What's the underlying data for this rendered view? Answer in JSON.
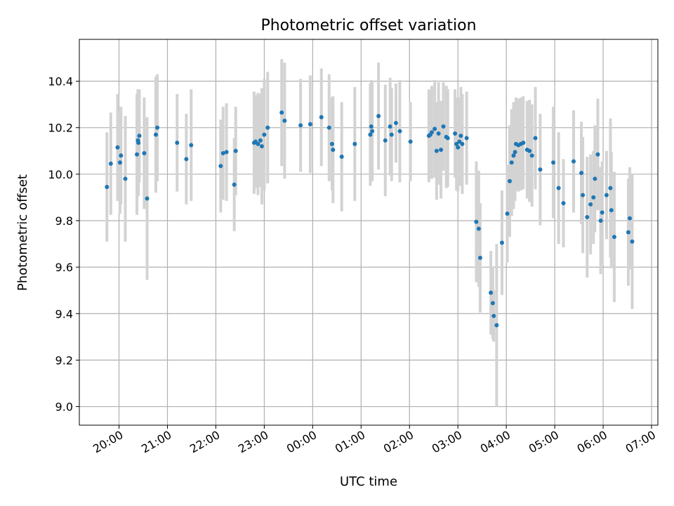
{
  "chart_data": {
    "type": "scatter",
    "title": "Photometric offset variation",
    "xlabel": "UTC time",
    "ylabel": "Photometric offset",
    "grid": true,
    "point_color": "#1f77b4",
    "errorbar_color": "#d3d3d3",
    "x_unit": "hours",
    "xlim": [
      19.18,
      31.13
    ],
    "ylim": [
      8.92,
      10.58
    ],
    "x_ticks": [
      {
        "value": 20,
        "label": "20:00"
      },
      {
        "value": 21,
        "label": "21:00"
      },
      {
        "value": 22,
        "label": "22:00"
      },
      {
        "value": 23,
        "label": "23:00"
      },
      {
        "value": 24,
        "label": "00:00"
      },
      {
        "value": 25,
        "label": "01:00"
      },
      {
        "value": 26,
        "label": "02:00"
      },
      {
        "value": 27,
        "label": "03:00"
      },
      {
        "value": 28,
        "label": "04:00"
      },
      {
        "value": 29,
        "label": "05:00"
      },
      {
        "value": 30,
        "label": "06:00"
      },
      {
        "value": 31,
        "label": "07:00"
      }
    ],
    "y_ticks": [
      {
        "value": 9.0,
        "label": "9.0"
      },
      {
        "value": 9.2,
        "label": "9.2"
      },
      {
        "value": 9.4,
        "label": "9.4"
      },
      {
        "value": 9.6,
        "label": "9.6"
      },
      {
        "value": 9.8,
        "label": "9.8"
      },
      {
        "value": 10.0,
        "label": "10.0"
      },
      {
        "value": 10.2,
        "label": "10.2"
      },
      {
        "value": 10.4,
        "label": "10.4"
      }
    ],
    "points": [
      [
        19.75,
        9.945,
        0.235
      ],
      [
        19.83,
        10.045,
        0.22
      ],
      [
        19.97,
        10.115,
        0.23
      ],
      [
        20.02,
        10.05,
        0.22
      ],
      [
        20.04,
        10.08,
        0.21
      ],
      [
        20.13,
        9.98,
        0.27
      ],
      [
        20.37,
        10.085,
        0.26
      ],
      [
        20.39,
        10.145,
        0.22
      ],
      [
        20.4,
        10.135,
        0.23
      ],
      [
        20.42,
        10.165,
        0.2
      ],
      [
        20.52,
        10.09,
        0.24
      ],
      [
        20.58,
        9.895,
        0.35
      ],
      [
        20.76,
        10.17,
        0.25
      ],
      [
        20.79,
        10.2,
        0.23
      ],
      [
        21.2,
        10.135,
        0.21
      ],
      [
        21.39,
        10.065,
        0.195
      ],
      [
        21.49,
        10.125,
        0.24
      ],
      [
        22.1,
        10.035,
        0.2
      ],
      [
        22.15,
        10.09,
        0.2
      ],
      [
        22.22,
        10.095,
        0.21
      ],
      [
        22.38,
        9.955,
        0.2
      ],
      [
        22.41,
        10.1,
        0.19
      ],
      [
        22.79,
        10.135,
        0.22
      ],
      [
        22.82,
        10.14,
        0.2
      ],
      [
        22.87,
        10.13,
        0.22
      ],
      [
        22.92,
        10.145,
        0.2
      ],
      [
        22.95,
        10.12,
        0.25
      ],
      [
        23.0,
        10.17,
        0.24
      ],
      [
        23.07,
        10.2,
        0.24
      ],
      [
        23.36,
        10.265,
        0.23
      ],
      [
        23.42,
        10.23,
        0.25
      ],
      [
        23.75,
        10.21,
        0.2
      ],
      [
        23.95,
        10.215,
        0.21
      ],
      [
        24.18,
        10.245,
        0.21
      ],
      [
        24.34,
        10.2,
        0.23
      ],
      [
        24.4,
        10.13,
        0.2
      ],
      [
        24.42,
        10.105,
        0.23
      ],
      [
        24.6,
        10.075,
        0.235
      ],
      [
        24.87,
        10.13,
        0.245
      ],
      [
        25.19,
        10.17,
        0.22
      ],
      [
        25.21,
        10.205,
        0.2
      ],
      [
        25.23,
        10.185,
        0.215
      ],
      [
        25.36,
        10.25,
        0.23
      ],
      [
        25.5,
        10.145,
        0.24
      ],
      [
        25.6,
        10.205,
        0.21
      ],
      [
        25.63,
        10.17,
        0.2
      ],
      [
        25.72,
        10.22,
        0.17
      ],
      [
        25.8,
        10.185,
        0.22
      ],
      [
        26.02,
        10.14,
        0.17
      ],
      [
        26.4,
        10.165,
        0.2
      ],
      [
        26.43,
        10.17,
        0.19
      ],
      [
        26.46,
        10.18,
        0.2
      ],
      [
        26.52,
        10.195,
        0.21
      ],
      [
        26.56,
        10.1,
        0.21
      ],
      [
        26.6,
        10.175,
        0.22
      ],
      [
        26.65,
        10.105,
        0.21
      ],
      [
        26.7,
        10.205,
        0.19
      ],
      [
        26.76,
        10.16,
        0.22
      ],
      [
        26.79,
        10.155,
        0.21
      ],
      [
        26.94,
        10.175,
        0.19
      ],
      [
        26.97,
        10.13,
        0.2
      ],
      [
        27.0,
        10.115,
        0.19
      ],
      [
        27.03,
        10.14,
        0.19
      ],
      [
        27.06,
        10.165,
        0.21
      ],
      [
        27.09,
        10.13,
        0.215
      ],
      [
        27.18,
        10.155,
        0.2
      ],
      [
        27.38,
        9.795,
        0.26
      ],
      [
        27.43,
        9.765,
        0.25
      ],
      [
        27.46,
        9.64,
        0.235
      ],
      [
        27.68,
        9.49,
        0.18
      ],
      [
        27.72,
        9.445,
        0.155
      ],
      [
        27.74,
        9.39,
        0.11
      ],
      [
        27.8,
        9.35,
        0.35
      ],
      [
        27.91,
        9.705,
        0.225
      ],
      [
        28.02,
        9.83,
        0.21
      ],
      [
        28.07,
        9.97,
        0.24
      ],
      [
        28.11,
        10.05,
        0.23
      ],
      [
        28.15,
        10.08,
        0.23
      ],
      [
        28.18,
        10.095,
        0.21
      ],
      [
        28.2,
        10.13,
        0.2
      ],
      [
        28.25,
        10.125,
        0.2
      ],
      [
        28.3,
        10.13,
        0.2
      ],
      [
        28.35,
        10.135,
        0.2
      ],
      [
        28.43,
        10.105,
        0.21
      ],
      [
        28.48,
        10.1,
        0.22
      ],
      [
        28.53,
        10.08,
        0.22
      ],
      [
        28.6,
        10.155,
        0.22
      ],
      [
        28.7,
        10.02,
        0.24
      ],
      [
        28.97,
        10.05,
        0.24
      ],
      [
        29.08,
        9.94,
        0.24
      ],
      [
        29.18,
        9.875,
        0.19
      ],
      [
        29.39,
        10.055,
        0.22
      ],
      [
        29.55,
        10.005,
        0.22
      ],
      [
        29.58,
        9.91,
        0.25
      ],
      [
        29.67,
        9.815,
        0.26
      ],
      [
        29.74,
        9.87,
        0.215
      ],
      [
        29.8,
        9.9,
        0.2
      ],
      [
        29.83,
        9.98,
        0.23
      ],
      [
        29.89,
        10.085,
        0.24
      ],
      [
        29.95,
        9.8,
        0.23
      ],
      [
        29.98,
        9.835,
        0.22
      ],
      [
        30.07,
        9.91,
        0.19
      ],
      [
        30.15,
        9.94,
        0.3
      ],
      [
        30.17,
        9.845,
        0.25
      ],
      [
        30.23,
        9.73,
        0.28
      ],
      [
        30.52,
        9.75,
        0.23
      ],
      [
        30.55,
        9.81,
        0.22
      ],
      [
        30.6,
        9.71,
        0.29
      ]
    ]
  }
}
